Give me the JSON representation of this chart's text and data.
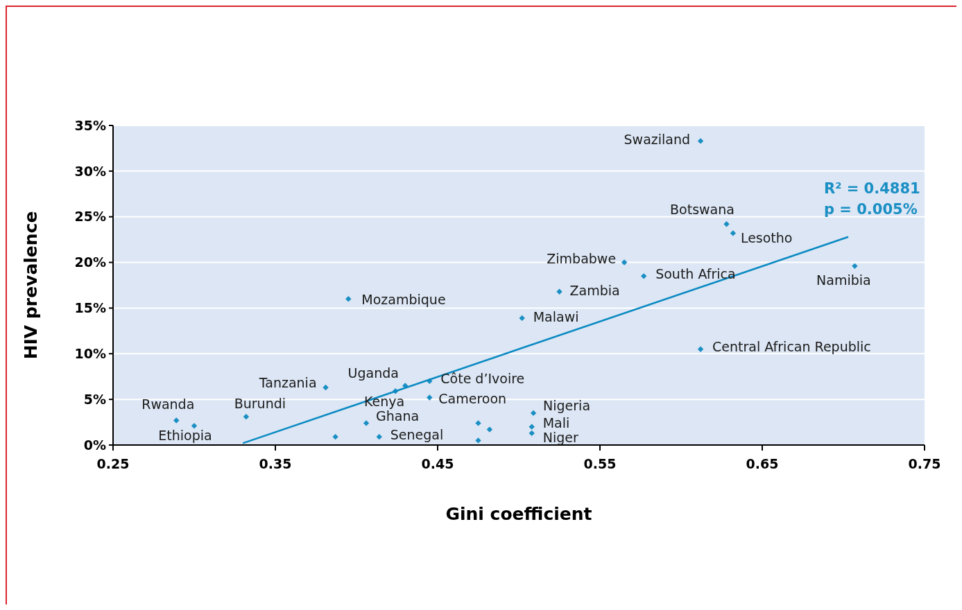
{
  "chart_data": {
    "type": "scatter",
    "xlabel": "Gini coefficient",
    "ylabel": "HIV prevalence",
    "xlim": [
      0.25,
      0.75
    ],
    "xticks": [
      0.25,
      0.35,
      0.45,
      0.55,
      0.65,
      0.75
    ],
    "ylim": [
      0,
      35
    ],
    "yticks": [
      {
        "value": 0,
        "label": "0%"
      },
      {
        "value": 5,
        "label": "5%"
      },
      {
        "value": 10,
        "label": "10%"
      },
      {
        "value": 15,
        "label": "15%"
      },
      {
        "value": 20,
        "label": "20%"
      },
      {
        "value": 25,
        "label": "25%"
      },
      {
        "value": 30,
        "label": "30%"
      },
      {
        "value": 35,
        "label": "35%"
      }
    ],
    "grid": "y",
    "series": [
      {
        "marker": "diamond",
        "color": "#1a8fc4",
        "x": [
          0.289,
          0.3,
          0.332,
          0.381,
          0.387,
          0.395,
          0.406,
          0.414,
          0.424,
          0.43,
          0.445,
          0.445,
          0.475,
          0.482,
          0.475,
          0.509,
          0.508,
          0.508,
          0.502,
          0.525,
          0.565,
          0.577,
          0.612,
          0.612,
          0.628,
          0.632,
          0.707
        ],
        "values": [
          2.7,
          2.1,
          3.1,
          6.3,
          0.9,
          16.0,
          2.4,
          0.9,
          5.9,
          6.5,
          7.0,
          5.2,
          2.4,
          1.7,
          0.5,
          3.5,
          2.0,
          1.3,
          13.9,
          16.8,
          20.0,
          18.5,
          33.3,
          10.5,
          24.2,
          23.2,
          19.6
        ]
      },
      {
        "type": "line",
        "color": "#0a8ac2",
        "x": [
          0.33,
          0.703
        ],
        "values": [
          0.2,
          22.8
        ]
      }
    ],
    "annotations": [
      {
        "text": "Rwanda",
        "x": 0.289,
        "y": 2.7
      },
      {
        "text": "Ethiopia",
        "x": 0.3,
        "y": 2.1
      },
      {
        "text": "Burundi",
        "x": 0.332,
        "y": 3.1
      },
      {
        "text": "Tanzania",
        "x": 0.381,
        "y": 6.3
      },
      {
        "text": "Mozambique",
        "x": 0.395,
        "y": 16.0
      },
      {
        "text": "Ghana",
        "x": 0.406,
        "y": 2.4
      },
      {
        "text": "Senegal",
        "x": 0.414,
        "y": 0.9
      },
      {
        "text": "Kenya",
        "x": 0.424,
        "y": 5.9
      },
      {
        "text": "Uganda",
        "x": 0.43,
        "y": 6.5
      },
      {
        "text": "Côte d’Ivoire",
        "x": 0.445,
        "y": 7.0
      },
      {
        "text": "Cameroon",
        "x": 0.445,
        "y": 5.2
      },
      {
        "text": "Nigeria",
        "x": 0.509,
        "y": 3.5
      },
      {
        "text": "Mali",
        "x": 0.508,
        "y": 2.0
      },
      {
        "text": "Niger",
        "x": 0.508,
        "y": 1.3
      },
      {
        "text": "Malawi",
        "x": 0.502,
        "y": 13.9
      },
      {
        "text": "Zambia",
        "x": 0.525,
        "y": 16.8
      },
      {
        "text": "Zimbabwe",
        "x": 0.565,
        "y": 20.0
      },
      {
        "text": "South Africa",
        "x": 0.577,
        "y": 18.5
      },
      {
        "text": "Swaziland",
        "x": 0.612,
        "y": 33.3
      },
      {
        "text": "Central African Republic",
        "x": 0.612,
        "y": 10.5
      },
      {
        "text": "Botswana",
        "x": 0.628,
        "y": 24.2
      },
      {
        "text": "Lesotho",
        "x": 0.632,
        "y": 23.2
      },
      {
        "text": "Namibia",
        "x": 0.707,
        "y": 19.6
      },
      "R² = 0.4881",
      "p = 0.005%"
    ]
  }
}
